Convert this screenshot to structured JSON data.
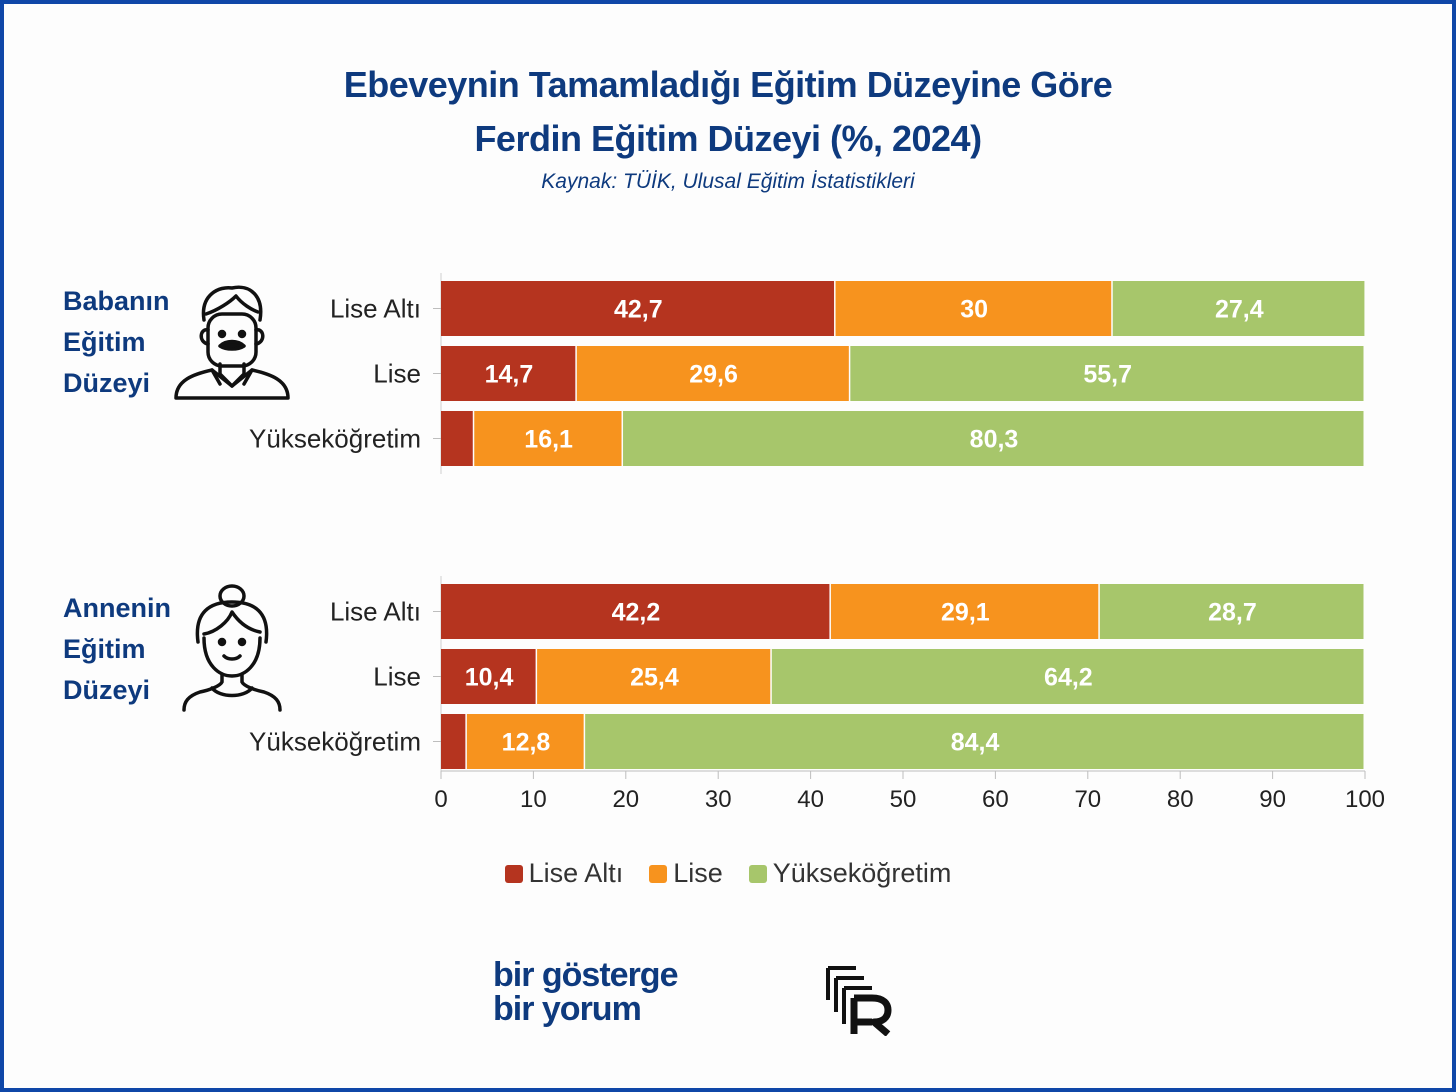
{
  "title": {
    "line1": "Ebeveynin Tamamladığı Eğitim Düzeyine Göre",
    "line2": "Ferdin Eğitim Düzeyi (%, 2024)"
  },
  "source": "Kaynak: TÜİK, Ulusal Eğitim İstatistikleri",
  "groups": [
    {
      "label_lines": [
        "Babanın",
        "Eğitim",
        "Düzeyi"
      ],
      "icon": "father-icon"
    },
    {
      "label_lines": [
        "Annenin",
        "Eğitim",
        "Düzeyi"
      ],
      "icon": "mother-icon"
    }
  ],
  "legend": [
    "Lise Altı",
    "Lise",
    "Yükseköğretim"
  ],
  "colors": {
    "Lise Altı": "#b5341f",
    "Lise": "#f7931e",
    "Yükseköğretim": "#a7c66b"
  },
  "brand": {
    "line1": "bir gösterge",
    "line2": "bir yorum"
  },
  "logo_icon": "r-logo-icon",
  "chart_data": {
    "type": "bar",
    "orientation": "horizontal",
    "stacked": true,
    "xlim": [
      0,
      100
    ],
    "xticks": [
      0,
      10,
      20,
      30,
      40,
      50,
      60,
      70,
      80,
      90,
      100
    ],
    "panels": [
      {
        "group": "Babanın Eğitim Düzeyi",
        "categories": [
          "Lise Altı",
          "Lise",
          "Yükseköğretim"
        ],
        "series": [
          {
            "name": "Lise Altı",
            "values": [
              42.7,
              14.7,
              3.6
            ]
          },
          {
            "name": "Lise",
            "values": [
              30,
              29.6,
              16.1
            ]
          },
          {
            "name": "Yükseköğretim",
            "values": [
              27.4,
              55.7,
              80.3
            ]
          }
        ],
        "labels": [
          [
            "42,7",
            "30",
            "27,4"
          ],
          [
            "14,7",
            "29,6",
            "55,7"
          ],
          [
            "",
            "16,1",
            "80,3"
          ]
        ]
      },
      {
        "group": "Annenin Eğitim Düzeyi",
        "categories": [
          "Lise Altı",
          "Lise",
          "Yükseköğretim"
        ],
        "series": [
          {
            "name": "Lise Altı",
            "values": [
              42.2,
              10.4,
              2.8
            ]
          },
          {
            "name": "Lise",
            "values": [
              29.1,
              25.4,
              12.8
            ]
          },
          {
            "name": "Yükseköğretim",
            "values": [
              28.7,
              64.2,
              84.4
            ]
          }
        ],
        "labels": [
          [
            "42,2",
            "29,1",
            "28,7"
          ],
          [
            "10,4",
            "25,4",
            "64,2"
          ],
          [
            "",
            "12,8",
            "84,4"
          ]
        ]
      }
    ],
    "legend_position": "bottom"
  }
}
